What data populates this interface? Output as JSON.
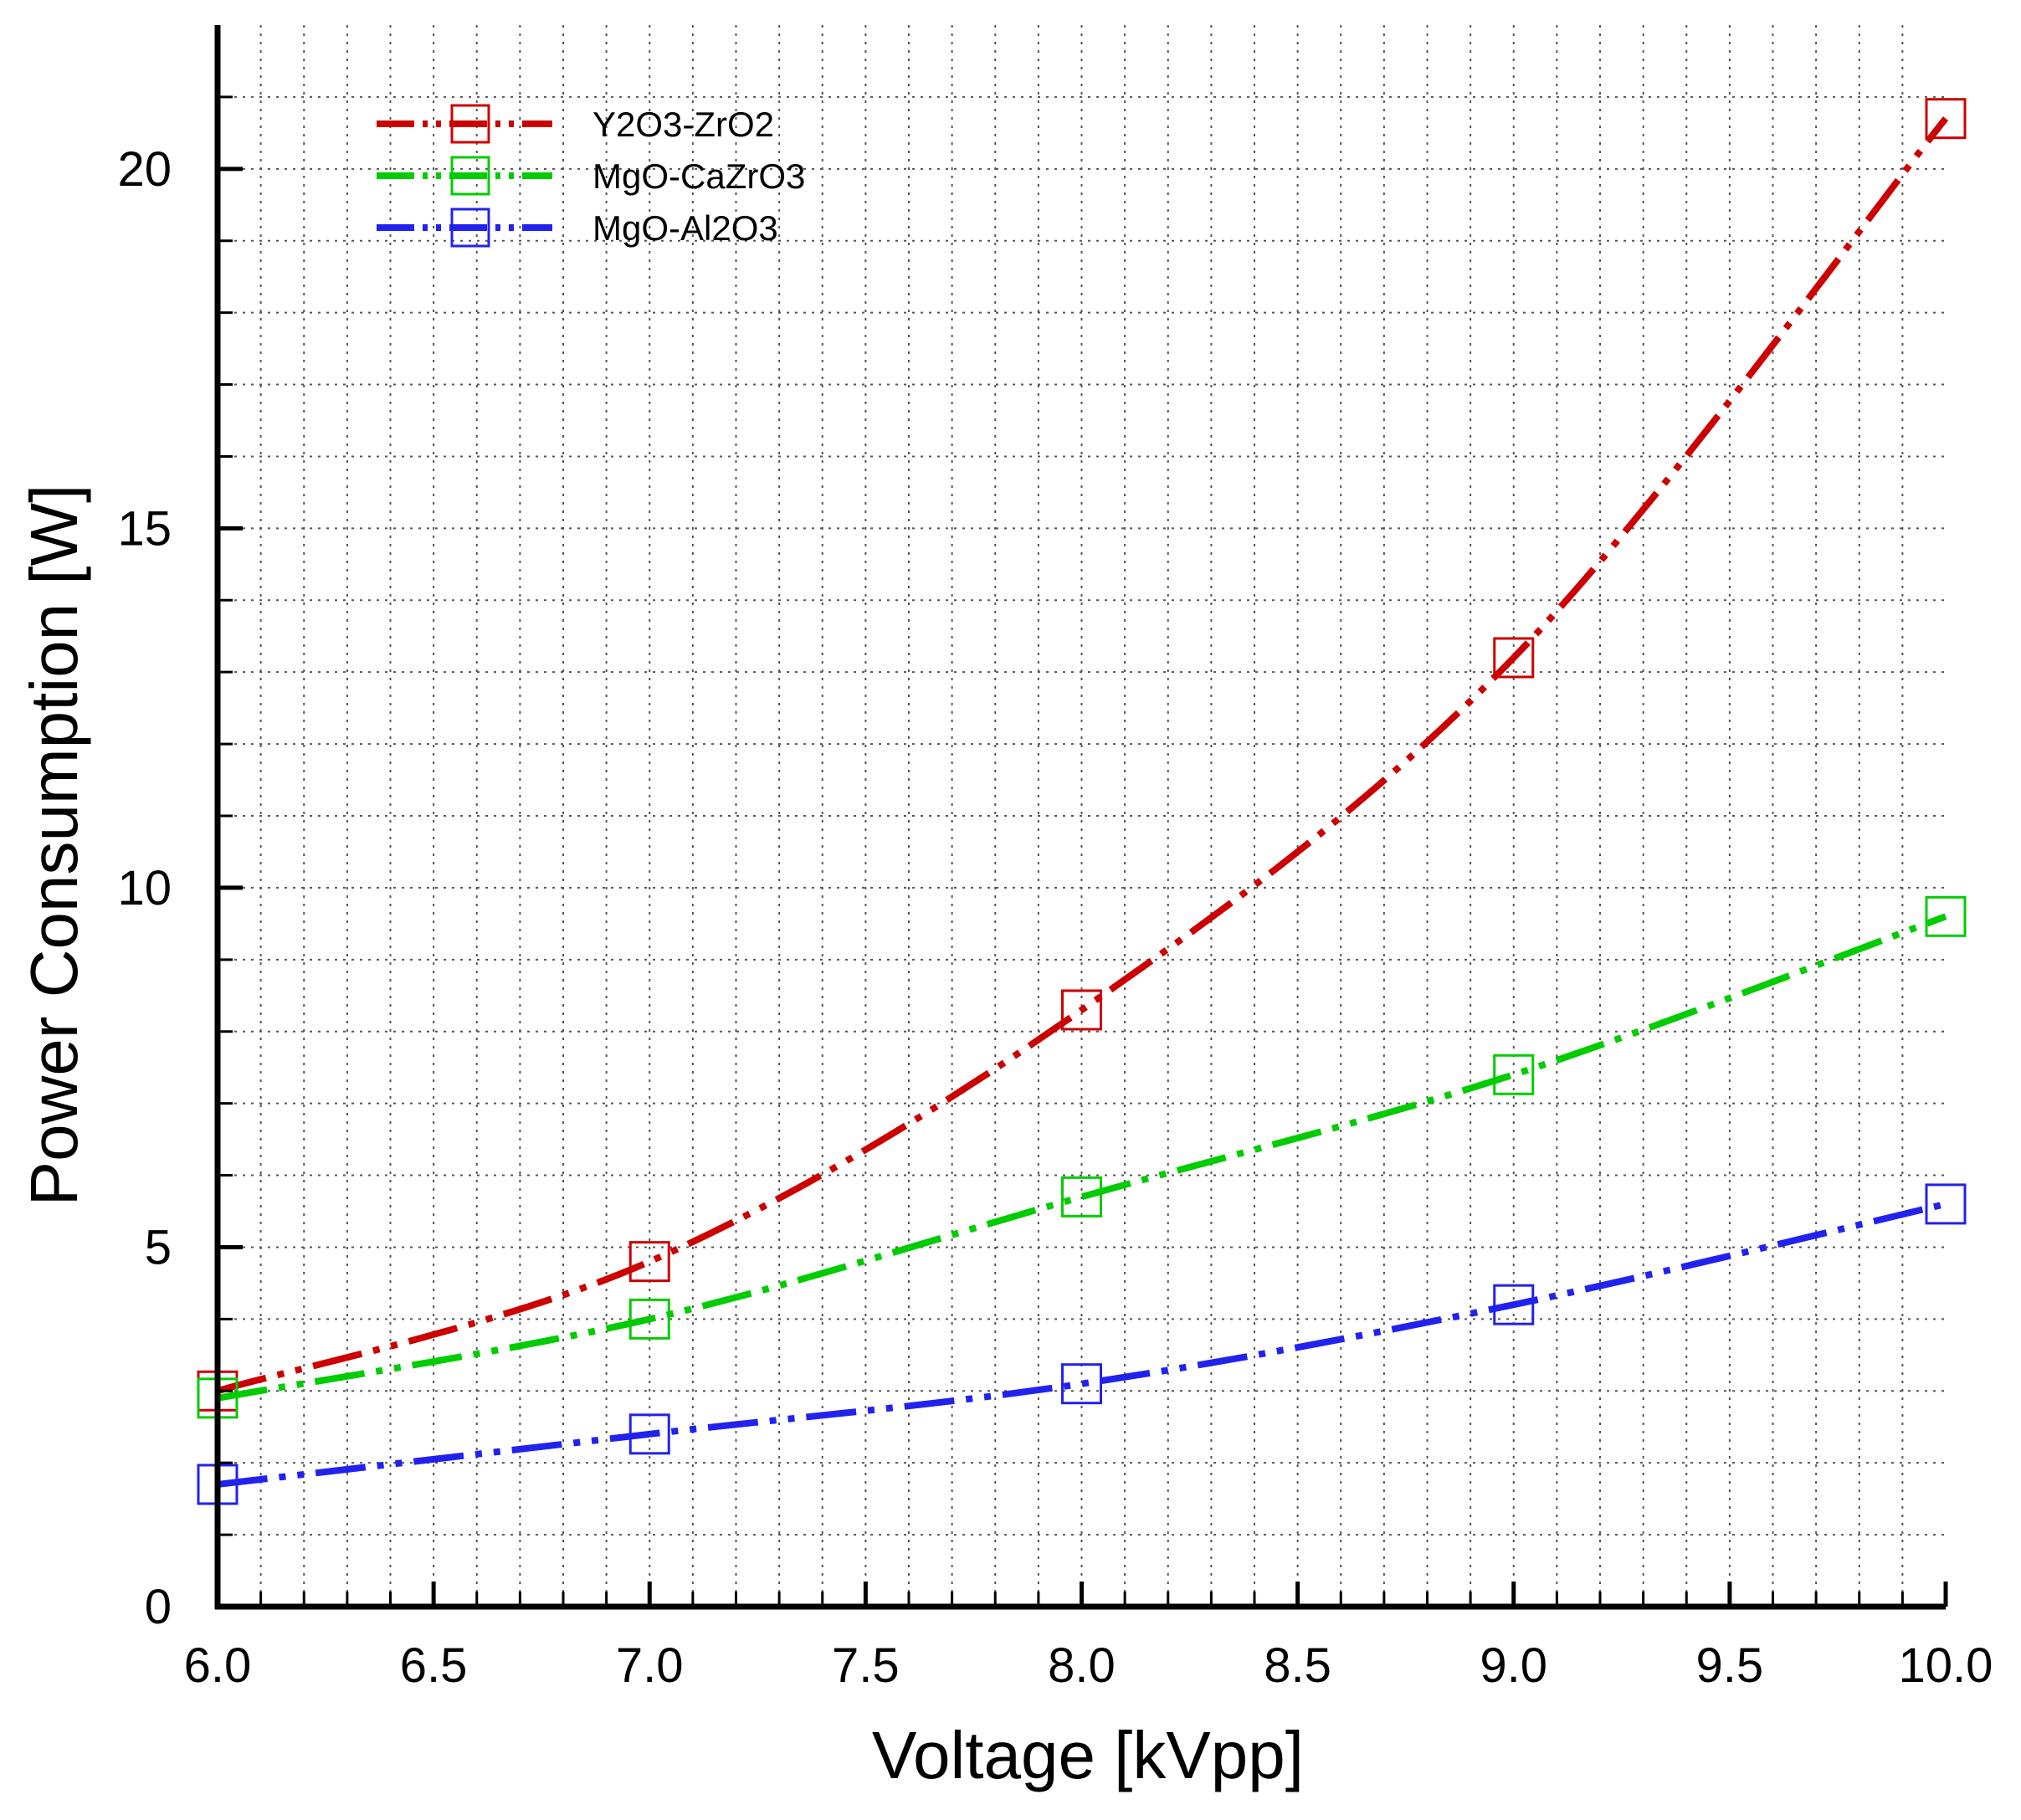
{
  "chart_data": {
    "type": "line",
    "title": "",
    "xlabel": "Voltage [kVpp]",
    "ylabel": "Power Consumption [W]",
    "xlim": [
      6.0,
      10.0
    ],
    "ylim": [
      0,
      22
    ],
    "x_ticks": [
      "6.0",
      "6.5",
      "7.0",
      "7.5",
      "8.0",
      "8.5",
      "9.0",
      "9.5",
      "10.0"
    ],
    "y_ticks": [
      "0",
      "5",
      "10",
      "15",
      "20"
    ],
    "grid": true,
    "legend_position": "top-left",
    "x": [
      6.0,
      7.0,
      8.0,
      9.0,
      10.0
    ],
    "series": [
      {
        "name": "Y2O3-ZrO2",
        "color": "#cc0000",
        "marker": "square",
        "values": [
          3.0,
          4.8,
          8.3,
          13.2,
          20.7
        ]
      },
      {
        "name": "MgO-CaZrO3",
        "color": "#00cc00",
        "marker": "square",
        "values": [
          2.9,
          4.0,
          5.7,
          7.4,
          9.6
        ]
      },
      {
        "name": "MgO-Al2O3",
        "color": "#2222ee",
        "marker": "square",
        "values": [
          1.7,
          2.4,
          3.1,
          4.2,
          5.6
        ]
      }
    ]
  }
}
